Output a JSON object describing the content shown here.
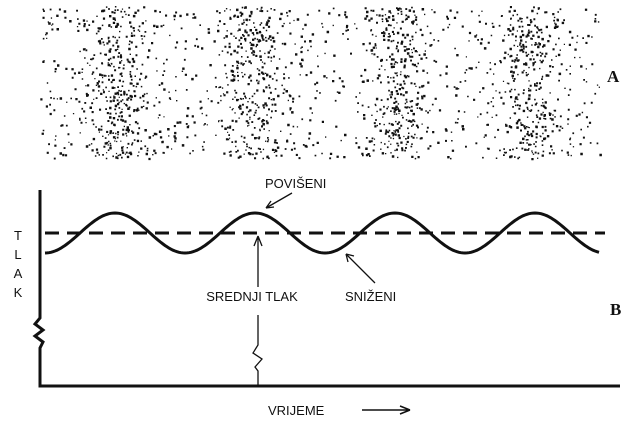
{
  "panel_a": {
    "label": "A"
  },
  "panel_b": {
    "label": "B",
    "y_axis_label": "TLAK",
    "x_axis_label": "VRIJEME",
    "annotations": {
      "high": "POVIŠENI",
      "low": "SNIŽENI",
      "mean": "SREDNJI TLAK"
    }
  }
}
